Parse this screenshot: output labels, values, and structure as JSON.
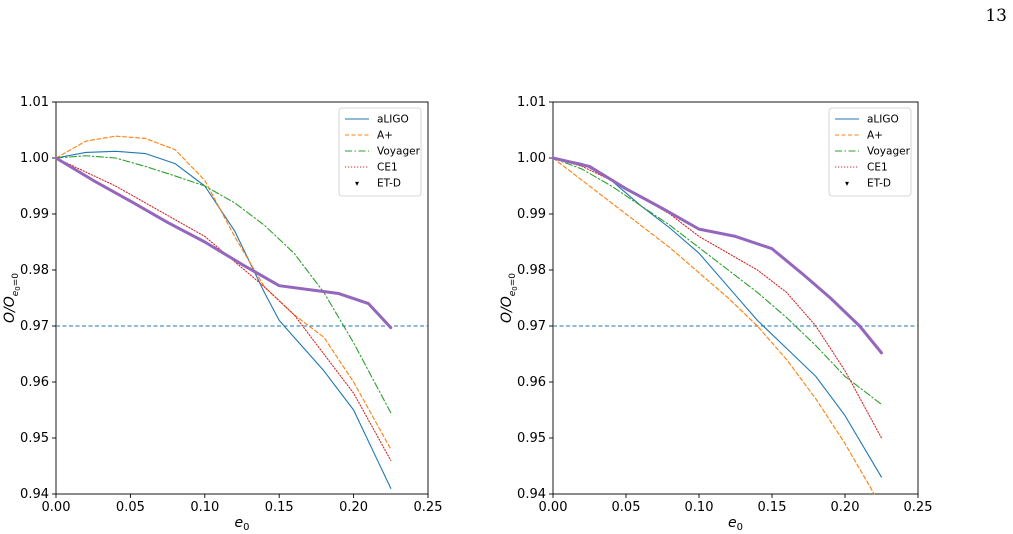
{
  "page_number": "13",
  "colors": {
    "aLIGO": "#1f77b4",
    "A+": "#ff7f0e",
    "Voyager": "#2ca02c",
    "CE1": "#d62728",
    "ET-D": "#9467bd",
    "threshold": "#1f77b4"
  },
  "chart_data": [
    {
      "type": "line",
      "xlabel": "e0",
      "ylabel": "O/O_{e0=0}",
      "xlim": [
        0.0,
        0.25
      ],
      "ylim": [
        0.94,
        1.01
      ],
      "xticks": [
        "0.00",
        "0.05",
        "0.10",
        "0.15",
        "0.20",
        "0.25"
      ],
      "yticks": [
        "0.94",
        "0.95",
        "0.96",
        "0.97",
        "0.98",
        "0.99",
        "1.00",
        "1.01"
      ],
      "legend_position": "top-right",
      "grid": false,
      "hline": 0.97,
      "series": [
        {
          "name": "aLIGO",
          "style": "solid",
          "x": [
            0,
            0.02,
            0.04,
            0.06,
            0.08,
            0.1,
            0.12,
            0.14,
            0.15,
            0.16,
            0.18,
            0.2,
            0.225
          ],
          "y": [
            1.0,
            1.001,
            1.0012,
            1.0008,
            0.999,
            0.995,
            0.987,
            0.976,
            0.971,
            0.968,
            0.962,
            0.955,
            0.941
          ]
        },
        {
          "name": "A+",
          "style": "dashed",
          "x": [
            0,
            0.02,
            0.04,
            0.06,
            0.08,
            0.1,
            0.12,
            0.14,
            0.16,
            0.18,
            0.2,
            0.225
          ],
          "y": [
            1.0,
            1.003,
            1.0039,
            1.0035,
            1.0015,
            0.996,
            0.986,
            0.977,
            0.972,
            0.968,
            0.96,
            0.948
          ]
        },
        {
          "name": "Voyager",
          "style": "dashdot",
          "x": [
            0,
            0.02,
            0.04,
            0.06,
            0.08,
            0.1,
            0.12,
            0.14,
            0.16,
            0.18,
            0.2,
            0.225
          ],
          "y": [
            1.0,
            1.0004,
            1.0,
            0.9985,
            0.9968,
            0.995,
            0.992,
            0.988,
            0.983,
            0.976,
            0.967,
            0.9545
          ]
        },
        {
          "name": "CE1",
          "style": "dotted",
          "x": [
            0,
            0.02,
            0.04,
            0.06,
            0.08,
            0.1,
            0.12,
            0.14,
            0.16,
            0.18,
            0.2,
            0.225
          ],
          "y": [
            1.0,
            0.9975,
            0.995,
            0.992,
            0.989,
            0.986,
            0.9815,
            0.977,
            0.972,
            0.965,
            0.958,
            0.946
          ]
        },
        {
          "name": "ET-D",
          "style": "thick",
          "x": [
            0,
            0.025,
            0.05,
            0.075,
            0.1,
            0.125,
            0.15,
            0.17,
            0.19,
            0.21,
            0.225
          ],
          "y": [
            1.0,
            0.996,
            0.9923,
            0.9885,
            0.985,
            0.981,
            0.9772,
            0.9765,
            0.9758,
            0.974,
            0.9697
          ]
        }
      ]
    },
    {
      "type": "line",
      "xlabel": "e0",
      "ylabel": "O/O_{e0=0}",
      "xlim": [
        0.0,
        0.25
      ],
      "ylim": [
        0.94,
        1.01
      ],
      "xticks": [
        "0.00",
        "0.05",
        "0.10",
        "0.15",
        "0.20",
        "0.25"
      ],
      "yticks": [
        "0.94",
        "0.95",
        "0.96",
        "0.97",
        "0.98",
        "0.99",
        "1.00",
        "1.01"
      ],
      "legend_position": "top-right",
      "grid": false,
      "hline": 0.97,
      "series": [
        {
          "name": "aLIGO",
          "style": "solid",
          "x": [
            0,
            0.02,
            0.04,
            0.06,
            0.08,
            0.1,
            0.12,
            0.14,
            0.16,
            0.18,
            0.2,
            0.225
          ],
          "y": [
            1.0,
            0.999,
            0.996,
            0.9915,
            0.9875,
            0.983,
            0.977,
            0.971,
            0.966,
            0.961,
            0.954,
            0.943
          ]
        },
        {
          "name": "A+",
          "style": "dashed",
          "x": [
            0,
            0.02,
            0.04,
            0.06,
            0.08,
            0.1,
            0.12,
            0.14,
            0.16,
            0.18,
            0.2,
            0.22
          ],
          "y": [
            1.0,
            0.996,
            0.992,
            0.988,
            0.984,
            0.9795,
            0.975,
            0.97,
            0.964,
            0.957,
            0.949,
            0.94
          ]
        },
        {
          "name": "Voyager",
          "style": "dashdot",
          "x": [
            0,
            0.02,
            0.04,
            0.06,
            0.08,
            0.1,
            0.12,
            0.14,
            0.16,
            0.18,
            0.2,
            0.225
          ],
          "y": [
            1.0,
            0.998,
            0.995,
            0.9915,
            0.988,
            0.984,
            0.98,
            0.976,
            0.9715,
            0.9665,
            0.961,
            0.956
          ]
        },
        {
          "name": "CE1",
          "style": "dotted",
          "x": [
            0,
            0.02,
            0.04,
            0.06,
            0.08,
            0.1,
            0.12,
            0.14,
            0.16,
            0.18,
            0.2,
            0.225
          ],
          "y": [
            1.0,
            0.9985,
            0.996,
            0.993,
            0.99,
            0.986,
            0.983,
            0.98,
            0.976,
            0.97,
            0.962,
            0.95
          ]
        },
        {
          "name": "ET-D",
          "style": "thick",
          "x": [
            0,
            0.025,
            0.05,
            0.075,
            0.1,
            0.125,
            0.15,
            0.17,
            0.19,
            0.21,
            0.225
          ],
          "y": [
            1.0,
            0.9985,
            0.9945,
            0.991,
            0.9873,
            0.986,
            0.9838,
            0.9795,
            0.975,
            0.97,
            0.9652
          ]
        }
      ]
    }
  ]
}
